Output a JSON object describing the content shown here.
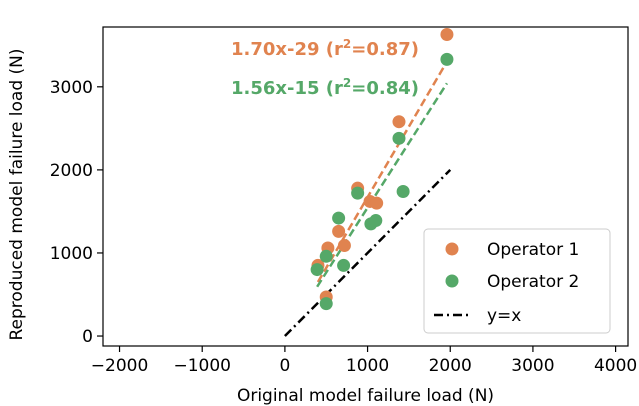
{
  "chart_data": {
    "type": "scatter",
    "xlabel": "Original model failure load (N)",
    "ylabel": "Reproduced model failure load (N)",
    "xlim": [
      -2200,
      4150
    ],
    "ylim": [
      -120,
      3720
    ],
    "xticks": [
      -2000,
      -1000,
      0,
      1000,
      2000,
      3000,
      4000
    ],
    "yticks": [
      0,
      1000,
      2000,
      3000
    ],
    "grid": false,
    "legend_position": "bottom-right",
    "series": [
      {
        "name": "Operator 1",
        "color": "#E0834F",
        "points": [
          [
            400,
            850
          ],
          [
            520,
            1060
          ],
          [
            500,
            470
          ],
          [
            650,
            1260
          ],
          [
            720,
            1090
          ],
          [
            880,
            1780
          ],
          [
            1030,
            1620
          ],
          [
            1110,
            1600
          ],
          [
            1380,
            2580
          ],
          [
            1960,
            3630
          ]
        ]
      },
      {
        "name": "Operator 2",
        "color": "#55A868",
        "points": [
          [
            390,
            800
          ],
          [
            500,
            960
          ],
          [
            500,
            390
          ],
          [
            650,
            1420
          ],
          [
            710,
            850
          ],
          [
            880,
            1720
          ],
          [
            1040,
            1350
          ],
          [
            1100,
            1390
          ],
          [
            1380,
            2380
          ],
          [
            1430,
            1740
          ],
          [
            1960,
            3330
          ]
        ]
      }
    ],
    "fits": [
      {
        "series": "Operator 1",
        "label": "1.70x-29 (r",
        "sup": "2",
        "label_end": "=0.87)",
        "slope": 1.7,
        "intercept": -29,
        "x_range": [
          400,
          1960
        ],
        "color": "#E0834F"
      },
      {
        "series": "Operator 2",
        "label": "1.56x-15 (r",
        "sup": "2",
        "label_end": "=0.84)",
        "slope": 1.56,
        "intercept": -15,
        "x_range": [
          390,
          1960
        ],
        "color": "#55A868"
      }
    ],
    "reference_line": {
      "name": "y=x",
      "x_range": [
        0,
        2000
      ],
      "color": "#000000",
      "style": "dash-dot"
    }
  }
}
